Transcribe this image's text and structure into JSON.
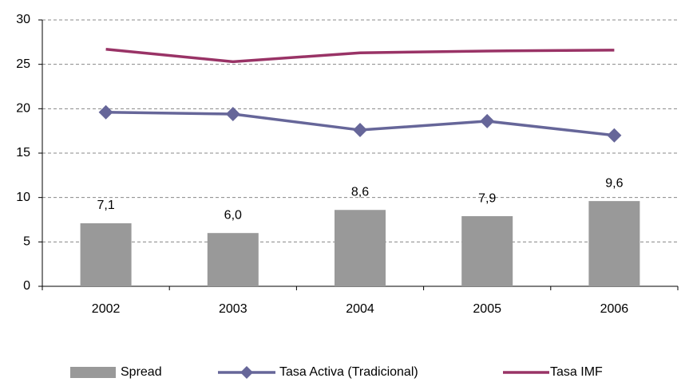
{
  "chart_data": {
    "type": "bar",
    "categories": [
      "2002",
      "2003",
      "2004",
      "2005",
      "2006"
    ],
    "series": [
      {
        "name": "Spread",
        "type": "bar",
        "color": "#999999",
        "values": [
          7.1,
          6.0,
          8.6,
          7.9,
          9.6
        ],
        "value_labels": [
          "7,1",
          "6,0",
          "8,6",
          "7,9",
          "9,6"
        ]
      },
      {
        "name": "Tasa Activa (Tradicional)",
        "type": "line",
        "marker": "diamond",
        "color": "#666699",
        "values": [
          19.6,
          19.4,
          17.6,
          18.6,
          17.0
        ]
      },
      {
        "name": "Tasa IMF",
        "type": "line",
        "color": "#993366",
        "values": [
          26.7,
          25.3,
          26.3,
          26.5,
          26.6
        ]
      }
    ],
    "ylim": [
      0,
      30
    ],
    "yticks": [
      0,
      5,
      10,
      15,
      20,
      25,
      30
    ],
    "grid": true,
    "legend": "bottom"
  }
}
